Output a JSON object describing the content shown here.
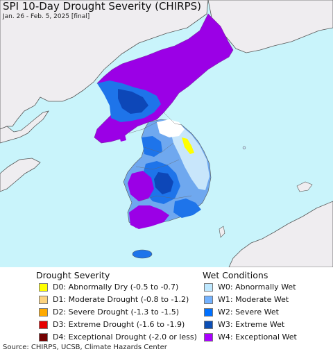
{
  "title": "SPI 10-Day Drought Severity (CHIRPS)",
  "subtitle": "Jan. 26 - Feb. 5, 2025 [final]",
  "colors": {
    "water": "#c9f4fb",
    "foreign_land": "#efedf0",
    "w4": "#9b00e6",
    "w3": "#0d47b8",
    "w2": "#1e74ea",
    "w1": "#6fa8ef",
    "w0": "#c8e6fb",
    "d0": "#ffff00",
    "normal": "#ffffff"
  },
  "legend": {
    "drought_title": "Drought Severity",
    "wet_title": "Wet Conditions",
    "drought": [
      {
        "label": "D0: Abnormally Dry (-0.5 to -0.7)",
        "color": "#ffff00"
      },
      {
        "label": "D1: Moderate Drought (-0.8 to -1.2)",
        "color": "#fcd37f"
      },
      {
        "label": "D2: Severe Drought (-1.3 to -1.5)",
        "color": "#ffaa00"
      },
      {
        "label": "D3: Extreme Drought (-1.6 to -1.9)",
        "color": "#e60000"
      },
      {
        "label": "D4: Exceptional Drought (-2.0 or less)",
        "color": "#730000"
      }
    ],
    "wet": [
      {
        "label": "W0: Abnormally Wet",
        "color": "#bee8ff"
      },
      {
        "label": "W1: Moderate Wet",
        "color": "#73b2ff"
      },
      {
        "label": "W2: Severe Wet",
        "color": "#0070ff"
      },
      {
        "label": "W3: Extreme Wet",
        "color": "#0c4fb5"
      },
      {
        "label": "W4: Exceptional Wet",
        "color": "#aa00ff"
      }
    ]
  },
  "source": "Source: CHIRPS, UCSB, Climate Hazards Center"
}
